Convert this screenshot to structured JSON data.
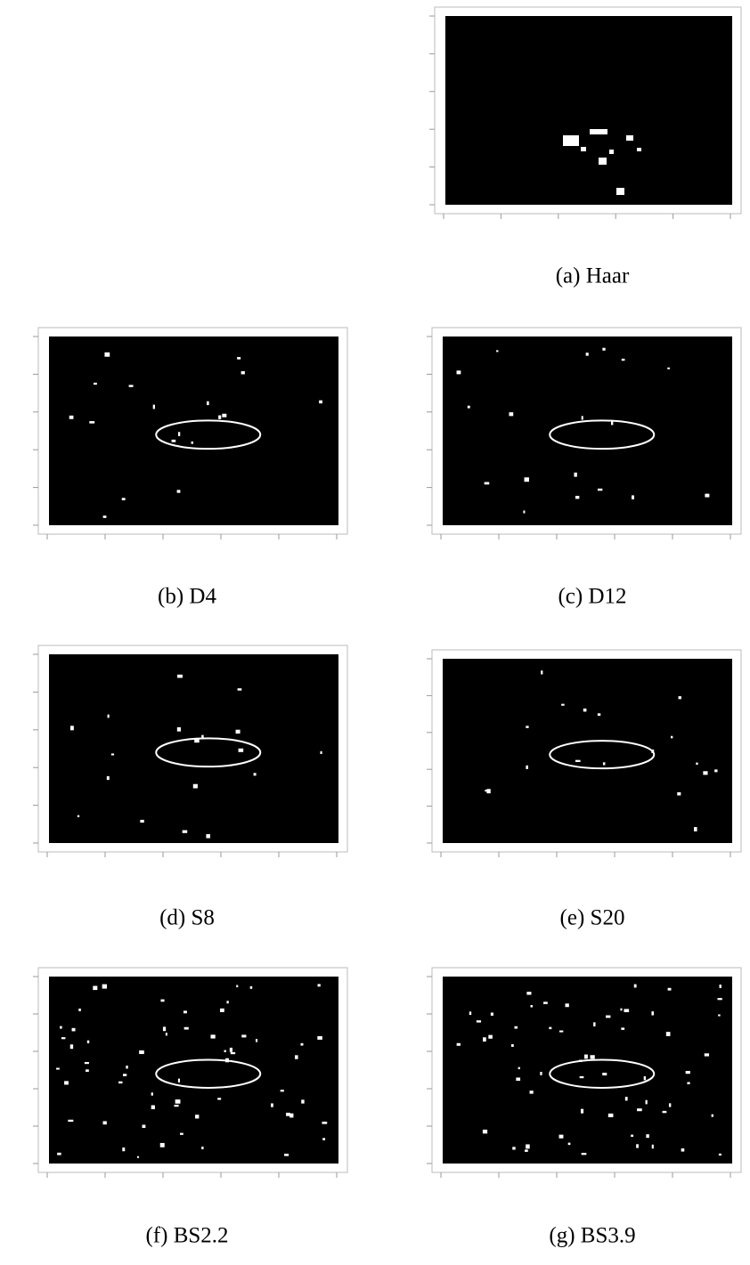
{
  "figure": {
    "panels": [
      {
        "caption": "(a) Haar"
      },
      {
        "caption": "(b) D4"
      },
      {
        "caption": "(c) D12"
      },
      {
        "caption": "(d) S8"
      },
      {
        "caption": "(e) S20"
      },
      {
        "caption": "(f) BS2.2"
      },
      {
        "caption": "(g) BS3.9"
      }
    ]
  }
}
